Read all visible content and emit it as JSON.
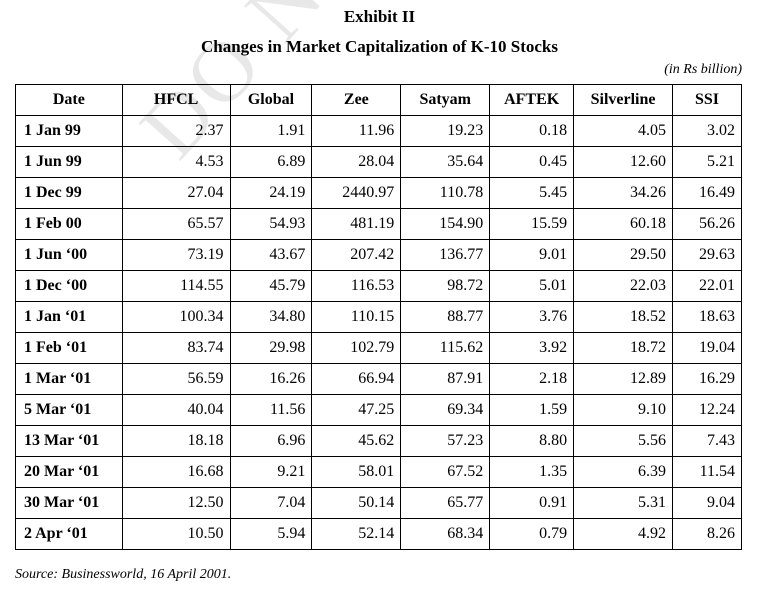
{
  "watermark": "DO NOT COPY",
  "exhibit_label": "Exhibit II",
  "title": "Changes in Market Capitalization of K-10 Stocks",
  "unit_note": "(in Rs billion)",
  "table": {
    "headers": [
      "Date",
      "HFCL",
      "Global",
      "Zee",
      "Satyam",
      "AFTEK",
      "Silverline",
      "SSI"
    ],
    "rows": [
      [
        "1 Jan 99",
        "2.37",
        "1.91",
        "11.96",
        "19.23",
        "0.18",
        "4.05",
        "3.02"
      ],
      [
        "1 Jun 99",
        "4.53",
        "6.89",
        "28.04",
        "35.64",
        "0.45",
        "12.60",
        "5.21"
      ],
      [
        "1 Dec 99",
        "27.04",
        "24.19",
        "2440.97",
        "110.78",
        "5.45",
        "34.26",
        "16.49"
      ],
      [
        "1 Feb 00",
        "65.57",
        "54.93",
        "481.19",
        "154.90",
        "15.59",
        "60.18",
        "56.26"
      ],
      [
        "1 Jun ‘00",
        "73.19",
        "43.67",
        "207.42",
        "136.77",
        "9.01",
        "29.50",
        "29.63"
      ],
      [
        "1 Dec ‘00",
        "114.55",
        "45.79",
        "116.53",
        "98.72",
        "5.01",
        "22.03",
        "22.01"
      ],
      [
        "1 Jan ‘01",
        "100.34",
        "34.80",
        "110.15",
        "88.77",
        "3.76",
        "18.52",
        "18.63"
      ],
      [
        "1 Feb ‘01",
        "83.74",
        "29.98",
        "102.79",
        "115.62",
        "3.92",
        "18.72",
        "19.04"
      ],
      [
        "1 Mar ‘01",
        "56.59",
        "16.26",
        "66.94",
        "87.91",
        "2.18",
        "12.89",
        "16.29"
      ],
      [
        "5 Mar ‘01",
        "40.04",
        "11.56",
        "47.25",
        "69.34",
        "1.59",
        "9.10",
        "12.24"
      ],
      [
        "13 Mar ‘01",
        "18.18",
        "6.96",
        "45.62",
        "57.23",
        "8.80",
        "5.56",
        "7.43"
      ],
      [
        "20 Mar ‘01",
        "16.68",
        "9.21",
        "58.01",
        "67.52",
        "1.35",
        "6.39",
        "11.54"
      ],
      [
        "30 Mar ‘01",
        "12.50",
        "7.04",
        "50.14",
        "65.77",
        "0.91",
        "5.31",
        "9.04"
      ],
      [
        "2 Apr ‘01",
        "10.50",
        "5.94",
        "52.14",
        "68.34",
        "0.79",
        "4.92",
        "8.26"
      ]
    ]
  },
  "source": "Source: Businessworld, 16 April 2001."
}
